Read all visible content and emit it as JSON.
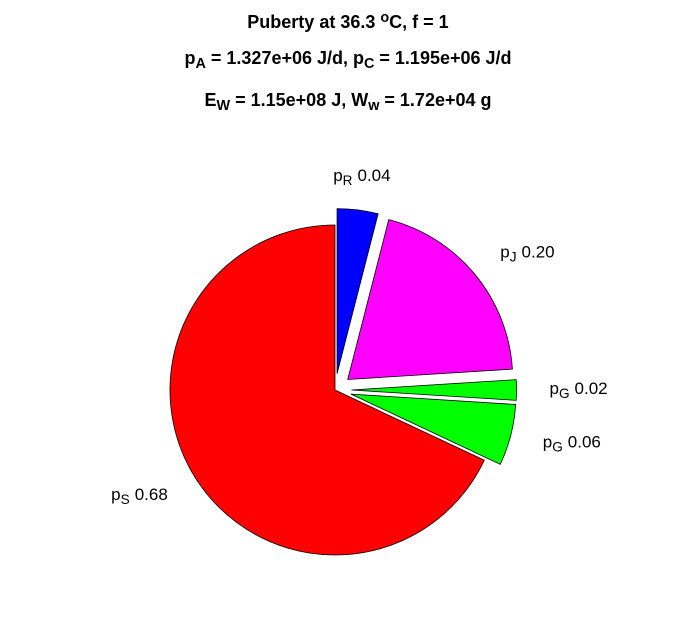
{
  "chart_data": {
    "type": "pie",
    "title": [
      [
        {
          "text": "Puberty at 36.3 "
        },
        {
          "text": "o",
          "script": "sup"
        },
        {
          "text": "C, f = 1"
        }
      ],
      [
        {
          "text": "p"
        },
        {
          "text": "A",
          "script": "sub"
        },
        {
          "text": " = 1.327e+06 J/d,  p"
        },
        {
          "text": "C",
          "script": "sub"
        },
        {
          "text": " = 1.195e+06 J/d"
        }
      ],
      [
        {
          "text": "E"
        },
        {
          "text": "W",
          "script": "sub"
        },
        {
          "text": " = 1.15e+08 J, W"
        },
        {
          "text": "w",
          "script": "sub"
        },
        {
          "text": " = 1.72e+04 g"
        }
      ]
    ],
    "categories": [
      [
        {
          "text": "p"
        },
        {
          "text": "R",
          "script": "sub"
        }
      ],
      [
        {
          "text": "p"
        },
        {
          "text": "J",
          "script": "sub"
        }
      ],
      [
        {
          "text": "p"
        },
        {
          "text": "G",
          "script": "sub"
        }
      ],
      [
        {
          "text": "p"
        },
        {
          "text": "G",
          "script": "sub"
        }
      ],
      [
        {
          "text": "p"
        },
        {
          "text": "S",
          "script": "sub"
        }
      ]
    ],
    "values": [
      0.04,
      0.2,
      0.02,
      0.06,
      0.68
    ],
    "value_labels": [
      "0.04",
      "0.20",
      "0.02",
      "0.06",
      "0.68"
    ],
    "colors": [
      "#0000ff",
      "#ff00ff",
      "#00ff00",
      "#00ff00",
      "#ff0000"
    ],
    "explode": [
      true,
      true,
      true,
      true,
      false
    ]
  }
}
